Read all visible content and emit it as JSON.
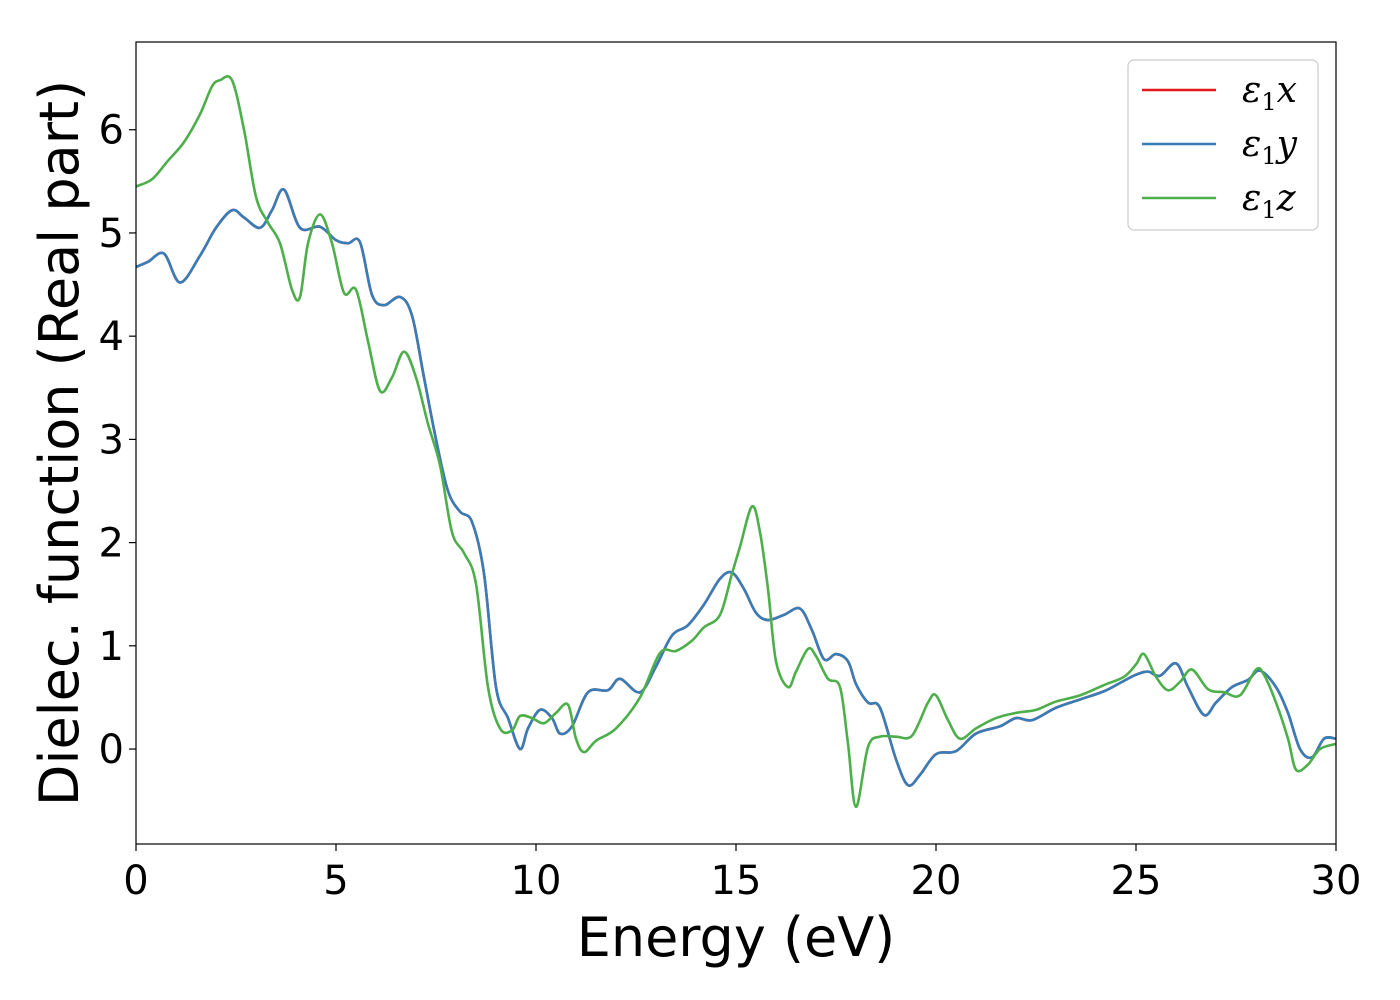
{
  "chart_data": {
    "type": "line",
    "xlabel": "Energy (eV)",
    "ylabel": "Dielec. function (Real part)",
    "xlim": [
      0,
      30
    ],
    "ylim": [
      -0.92,
      6.85
    ],
    "xticks": [
      0,
      5,
      10,
      15,
      20,
      25,
      30
    ],
    "yticks": [
      0,
      1,
      2,
      3,
      4,
      5,
      6
    ],
    "grid": false,
    "legend_position": "top-right",
    "series": [
      {
        "name": "ε1x",
        "legend_main": "ε",
        "legend_sub": "1",
        "legend_suffix": "x",
        "color": "#e41a1c",
        "x": [
          0,
          0.3,
          0.7,
          1.1,
          1.6,
          2.0,
          2.4,
          2.7,
          3.1,
          3.4,
          3.7,
          4.1,
          4.6,
          5.0,
          5.3,
          5.6,
          5.9,
          6.2,
          6.6,
          6.9,
          7.2,
          7.5,
          7.8,
          8.1,
          8.4,
          8.7,
          9.0,
          9.3,
          9.6,
          9.8,
          10.1,
          10.4,
          10.6,
          10.9,
          11.3,
          11.8,
          12.1,
          12.6,
          13.0,
          13.4,
          13.8,
          14.2,
          14.6,
          14.9,
          15.2,
          15.5,
          15.8,
          16.2,
          16.6,
          16.9,
          17.2,
          17.5,
          17.8,
          18.0,
          18.3,
          18.6,
          19.0,
          19.3,
          19.6,
          20.0,
          20.5,
          21.0,
          21.6,
          22.0,
          22.4,
          23.0,
          23.6,
          24.2,
          24.6,
          25.0,
          25.3,
          25.6,
          26.0,
          26.3,
          26.7,
          27.0,
          27.4,
          27.8,
          28.1,
          28.5,
          28.8,
          29.1,
          29.4,
          29.7,
          30.0
        ],
        "y": [
          4.67,
          4.72,
          4.8,
          4.52,
          4.78,
          5.05,
          5.22,
          5.15,
          5.05,
          5.22,
          5.42,
          5.05,
          5.06,
          4.93,
          4.9,
          4.91,
          4.4,
          4.3,
          4.38,
          4.2,
          3.6,
          3.0,
          2.5,
          2.3,
          2.2,
          1.7,
          0.6,
          0.3,
          0.0,
          0.2,
          0.38,
          0.3,
          0.15,
          0.22,
          0.55,
          0.57,
          0.68,
          0.55,
          0.8,
          1.1,
          1.2,
          1.4,
          1.65,
          1.71,
          1.55,
          1.32,
          1.25,
          1.3,
          1.36,
          1.15,
          0.87,
          0.92,
          0.85,
          0.63,
          0.45,
          0.4,
          -0.1,
          -0.35,
          -0.25,
          -0.05,
          -0.02,
          0.15,
          0.22,
          0.3,
          0.28,
          0.4,
          0.48,
          0.56,
          0.64,
          0.72,
          0.75,
          0.71,
          0.83,
          0.6,
          0.33,
          0.45,
          0.6,
          0.67,
          0.76,
          0.6,
          0.35,
          0.0,
          -0.08,
          0.1,
          0.1
        ]
      },
      {
        "name": "ε1y",
        "legend_main": "ε",
        "legend_sub": "1",
        "legend_suffix": "y",
        "color": "#377eb8",
        "x": [
          0,
          0.3,
          0.7,
          1.1,
          1.6,
          2.0,
          2.4,
          2.7,
          3.1,
          3.4,
          3.7,
          4.1,
          4.6,
          5.0,
          5.3,
          5.6,
          5.9,
          6.2,
          6.6,
          6.9,
          7.2,
          7.5,
          7.8,
          8.1,
          8.4,
          8.7,
          9.0,
          9.3,
          9.6,
          9.8,
          10.1,
          10.4,
          10.6,
          10.9,
          11.3,
          11.8,
          12.1,
          12.6,
          13.0,
          13.4,
          13.8,
          14.2,
          14.6,
          14.9,
          15.2,
          15.5,
          15.8,
          16.2,
          16.6,
          16.9,
          17.2,
          17.5,
          17.8,
          18.0,
          18.3,
          18.6,
          19.0,
          19.3,
          19.6,
          20.0,
          20.5,
          21.0,
          21.6,
          22.0,
          22.4,
          23.0,
          23.6,
          24.2,
          24.6,
          25.0,
          25.3,
          25.6,
          26.0,
          26.3,
          26.7,
          27.0,
          27.4,
          27.8,
          28.1,
          28.5,
          28.8,
          29.1,
          29.4,
          29.7,
          30.0
        ],
        "y": [
          4.67,
          4.72,
          4.8,
          4.52,
          4.78,
          5.05,
          5.22,
          5.15,
          5.05,
          5.22,
          5.42,
          5.05,
          5.06,
          4.93,
          4.9,
          4.91,
          4.4,
          4.3,
          4.38,
          4.2,
          3.6,
          3.0,
          2.5,
          2.3,
          2.2,
          1.7,
          0.6,
          0.3,
          0.0,
          0.2,
          0.38,
          0.3,
          0.15,
          0.22,
          0.55,
          0.57,
          0.68,
          0.55,
          0.8,
          1.1,
          1.2,
          1.4,
          1.65,
          1.71,
          1.55,
          1.32,
          1.25,
          1.3,
          1.36,
          1.15,
          0.87,
          0.92,
          0.85,
          0.63,
          0.45,
          0.4,
          -0.1,
          -0.35,
          -0.25,
          -0.05,
          -0.02,
          0.15,
          0.22,
          0.3,
          0.28,
          0.4,
          0.48,
          0.56,
          0.64,
          0.72,
          0.75,
          0.71,
          0.83,
          0.6,
          0.33,
          0.45,
          0.6,
          0.67,
          0.76,
          0.6,
          0.35,
          0.0,
          -0.08,
          0.1,
          0.1
        ]
      },
      {
        "name": "ε1z",
        "legend_main": "ε",
        "legend_sub": "1",
        "legend_suffix": "z",
        "color": "#4daf4a",
        "x": [
          0,
          0.4,
          0.8,
          1.2,
          1.6,
          1.9,
          2.1,
          2.4,
          2.7,
          3.0,
          3.3,
          3.6,
          3.9,
          4.1,
          4.3,
          4.6,
          4.9,
          5.2,
          5.5,
          5.8,
          6.1,
          6.4,
          6.7,
          7.0,
          7.3,
          7.6,
          7.9,
          8.2,
          8.5,
          8.8,
          9.1,
          9.4,
          9.6,
          9.9,
          10.2,
          10.5,
          10.8,
          11.0,
          11.2,
          11.5,
          12.0,
          12.6,
          13.1,
          13.5,
          13.9,
          14.2,
          14.6,
          14.9,
          15.1,
          15.4,
          15.6,
          15.8,
          16.0,
          16.3,
          16.5,
          16.8,
          17.0,
          17.3,
          17.6,
          17.8,
          18.0,
          18.3,
          18.6,
          19.0,
          19.4,
          19.8,
          20.0,
          20.3,
          20.6,
          21.0,
          21.5,
          22.0,
          22.5,
          23.0,
          23.6,
          24.2,
          24.7,
          25.0,
          25.2,
          25.5,
          25.8,
          26.1,
          26.4,
          26.8,
          27.2,
          27.6,
          28.0,
          28.2,
          28.5,
          28.8,
          29.0,
          29.3,
          29.6,
          30.0
        ],
        "y": [
          5.45,
          5.52,
          5.7,
          5.88,
          6.15,
          6.42,
          6.48,
          6.48,
          6.0,
          5.35,
          5.1,
          4.9,
          4.45,
          4.38,
          4.9,
          5.18,
          4.9,
          4.42,
          4.45,
          3.95,
          3.47,
          3.6,
          3.85,
          3.6,
          3.15,
          2.75,
          2.1,
          1.9,
          1.6,
          0.6,
          0.2,
          0.18,
          0.32,
          0.3,
          0.25,
          0.35,
          0.43,
          0.1,
          -0.03,
          0.08,
          0.2,
          0.5,
          0.93,
          0.95,
          1.05,
          1.18,
          1.3,
          1.7,
          1.96,
          2.35,
          2.1,
          1.55,
          0.85,
          0.6,
          0.75,
          0.97,
          0.9,
          0.68,
          0.6,
          0.05,
          -0.56,
          0.02,
          0.12,
          0.12,
          0.13,
          0.45,
          0.52,
          0.28,
          0.1,
          0.2,
          0.3,
          0.35,
          0.38,
          0.46,
          0.52,
          0.62,
          0.7,
          0.82,
          0.92,
          0.7,
          0.57,
          0.65,
          0.77,
          0.58,
          0.55,
          0.52,
          0.77,
          0.72,
          0.45,
          0.1,
          -0.2,
          -0.15,
          0.0,
          0.05
        ]
      }
    ]
  }
}
